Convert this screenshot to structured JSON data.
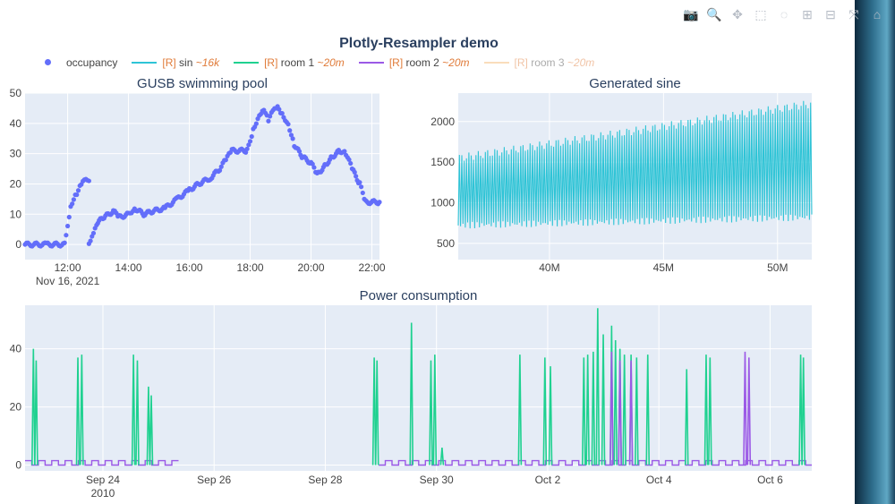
{
  "figure": {
    "title": "Plotly-Resampler demo"
  },
  "modebar": [
    {
      "name": "camera-icon",
      "glyph": "📷"
    },
    {
      "name": "zoom-icon",
      "glyph": "🔍"
    },
    {
      "name": "pan-icon",
      "glyph": "✥"
    },
    {
      "name": "box-select-icon",
      "glyph": "⬚"
    },
    {
      "name": "lasso-select-icon",
      "glyph": "◌"
    },
    {
      "name": "zoom-in-icon",
      "glyph": "⊞"
    },
    {
      "name": "zoom-out-icon",
      "glyph": "⊟"
    },
    {
      "name": "autoscale-icon",
      "glyph": "⤧"
    },
    {
      "name": "reset-axes-icon",
      "glyph": "⌂"
    }
  ],
  "legend": [
    {
      "tag": "",
      "name": "occupancy",
      "ds": "",
      "color": "#636efa",
      "symbol": "marker",
      "dim": false
    },
    {
      "tag": "[R]",
      "name": " sin ",
      "ds": "~16k",
      "color": "#2ec4d6",
      "symbol": "line",
      "dim": false
    },
    {
      "tag": "[R]",
      "name": " room 1 ",
      "ds": "~20m",
      "color": "#1fd190",
      "symbol": "line",
      "dim": false
    },
    {
      "tag": "[R]",
      "name": " room 2 ",
      "ds": "~20m",
      "color": "#9b59e6",
      "symbol": "line",
      "dim": false
    },
    {
      "tag": "[R]",
      "name": " room 3 ",
      "ds": "~20m",
      "color": "#f5b46a",
      "symbol": "line",
      "dim": true
    }
  ],
  "chart_data": [
    {
      "type": "scatter",
      "title": "GUSB swimming pool",
      "series": [
        {
          "name": "occupancy",
          "color": "#636efa"
        }
      ],
      "x_unit": "hour of day",
      "x_ticks": [
        12,
        14,
        16,
        18,
        20,
        22
      ],
      "x_tick_labels": [
        "12:00",
        "14:00",
        "16:00",
        "18:00",
        "20:00",
        "22:00"
      ],
      "x_sublabel": "Nov 16, 2021",
      "xlim": [
        10.6,
        22.25
      ],
      "y_ticks": [
        0,
        10,
        20,
        30,
        40,
        50
      ],
      "ylim": [
        -5,
        50
      ],
      "points": [
        [
          10.6,
          0
        ],
        [
          11.3,
          0
        ],
        [
          11.9,
          0
        ],
        [
          12.0,
          6
        ],
        [
          12.1,
          13
        ],
        [
          12.3,
          17
        ],
        [
          12.45,
          20
        ],
        [
          12.55,
          21
        ],
        [
          12.7,
          21
        ],
        [
          12.7,
          0
        ],
        [
          12.8,
          3
        ],
        [
          12.95,
          7
        ],
        [
          13.2,
          9
        ],
        [
          13.5,
          11
        ],
        [
          13.7,
          9
        ],
        [
          14.0,
          10
        ],
        [
          14.2,
          12
        ],
        [
          14.5,
          10
        ],
        [
          14.8,
          11
        ],
        [
          15.2,
          12
        ],
        [
          15.6,
          15
        ],
        [
          16.0,
          18
        ],
        [
          16.3,
          20
        ],
        [
          16.7,
          22
        ],
        [
          17.0,
          25
        ],
        [
          17.2,
          28
        ],
        [
          17.4,
          31
        ],
        [
          17.9,
          31
        ],
        [
          18.1,
          38
        ],
        [
          18.3,
          43
        ],
        [
          18.45,
          45
        ],
        [
          18.6,
          41
        ],
        [
          18.75,
          44
        ],
        [
          18.9,
          45
        ],
        [
          19.05,
          43
        ],
        [
          19.25,
          40
        ],
        [
          19.45,
          33
        ],
        [
          19.7,
          29
        ],
        [
          20.0,
          27
        ],
        [
          20.2,
          23
        ],
        [
          20.45,
          26
        ],
        [
          20.7,
          29
        ],
        [
          20.95,
          31
        ],
        [
          21.15,
          30
        ],
        [
          21.35,
          25
        ],
        [
          21.6,
          20
        ],
        [
          21.8,
          14
        ],
        [
          22.25,
          14
        ]
      ]
    },
    {
      "type": "line",
      "title": "Generated sine",
      "series": [
        {
          "name": "sin",
          "color": "#2ec4d6"
        }
      ],
      "x_ticks": [
        40000000,
        45000000,
        50000000
      ],
      "x_tick_labels": [
        "40M",
        "45M",
        "50M"
      ],
      "xlim": [
        36000000,
        51500000
      ],
      "y_ticks": [
        500,
        1000,
        1500,
        2000
      ],
      "ylim": [
        300,
        2350
      ],
      "band_start": {
        "min": 720,
        "max": 1550
      },
      "band_end": {
        "min": 820,
        "max": 2220
      },
      "oscillations": 150
    },
    {
      "type": "line",
      "title": "Power consumption",
      "x_ticks_days": [
        24,
        26,
        28,
        30,
        32,
        34,
        36
      ],
      "x_tick_labels": [
        "Sep 24",
        "Sep 26",
        "Sep 28",
        "Sep 30",
        "Oct 2",
        "Oct 4",
        "Oct 6"
      ],
      "x_sublabel": "2010",
      "xlim": [
        22.6,
        36.75
      ],
      "y_ticks": [
        0,
        20,
        40
      ],
      "ylim": [
        -2,
        55
      ],
      "gap": [
        25.25,
        28.85
      ],
      "series": [
        {
          "name": "room 1",
          "color": "#1fd190",
          "spikes": [
            [
              22.75,
              40
            ],
            [
              22.8,
              36
            ],
            [
              23.55,
              37
            ],
            [
              23.62,
              38
            ],
            [
              24.55,
              38
            ],
            [
              24.62,
              36
            ],
            [
              24.82,
              27
            ],
            [
              24.87,
              24
            ],
            [
              28.88,
              37
            ],
            [
              28.93,
              36
            ],
            [
              29.55,
              49
            ],
            [
              29.9,
              36
            ],
            [
              29.97,
              38
            ],
            [
              30.1,
              6
            ],
            [
              31.5,
              38
            ],
            [
              31.95,
              37
            ],
            [
              32.05,
              34
            ],
            [
              32.65,
              37
            ],
            [
              32.72,
              38
            ],
            [
              32.82,
              39
            ],
            [
              32.9,
              54
            ],
            [
              33.0,
              45
            ],
            [
              33.15,
              48
            ],
            [
              33.22,
              43
            ],
            [
              33.3,
              40
            ],
            [
              33.38,
              38
            ],
            [
              33.5,
              38
            ],
            [
              33.6,
              37
            ],
            [
              33.8,
              38
            ],
            [
              34.5,
              33
            ],
            [
              34.85,
              38
            ],
            [
              34.92,
              37
            ],
            [
              36.55,
              38
            ],
            [
              36.6,
              37
            ]
          ]
        },
        {
          "name": "room 2",
          "color": "#9b59e6",
          "baseline": 1.5,
          "baseline_step": 0.12,
          "spikes": [
            [
              33.15,
              39
            ],
            [
              33.3,
              36
            ],
            [
              33.5,
              36
            ],
            [
              35.55,
              39
            ],
            [
              35.62,
              37
            ]
          ]
        }
      ]
    }
  ]
}
